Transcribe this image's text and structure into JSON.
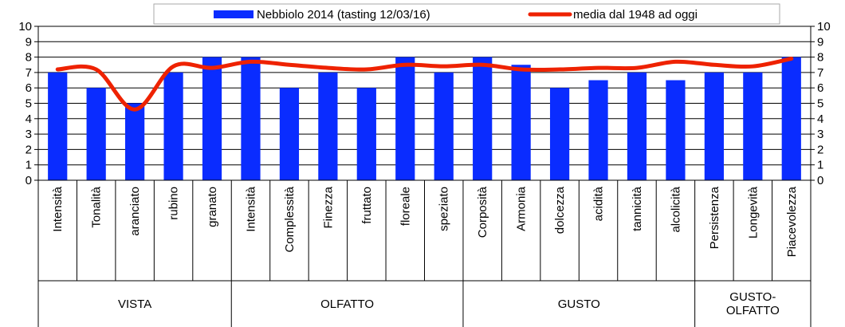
{
  "chart_data": {
    "type": "bar",
    "categories": [
      "Intensità",
      "Tonalità",
      "aranciato",
      "rubino",
      "granato",
      "Intensità",
      "Complessità",
      "Finezza",
      "fruttato",
      "floreale",
      "speziato",
      "Corposità",
      "Armonia",
      "dolcezza",
      "acidità",
      "tannicità",
      "alcolicità",
      "Persistenza",
      "Longevità",
      "Piacevolezza"
    ],
    "groups": [
      {
        "label": "VISTA",
        "count": 5
      },
      {
        "label": "OLFATTO",
        "count": 6
      },
      {
        "label": "GUSTO",
        "count": 6
      },
      {
        "label": "GUSTO-OLFATTO",
        "count": 3
      }
    ],
    "series": [
      {
        "name": "Nebbiolo 2014 (tasting 12/03/16)",
        "type": "bar",
        "color": "#0a2cff",
        "values": [
          7,
          6,
          5,
          7,
          8,
          8,
          6,
          7,
          6,
          8,
          7,
          8,
          7.5,
          6,
          6.5,
          7,
          6.5,
          7,
          7,
          8
        ]
      },
      {
        "name": "media dal 1948 ad oggi",
        "type": "line",
        "axis": "y2",
        "color": "#ee2200",
        "values": [
          7.2,
          7.2,
          4.6,
          7.4,
          7.3,
          7.7,
          7.5,
          7.3,
          7.2,
          7.5,
          7.4,
          7.5,
          7.2,
          7.2,
          7.3,
          7.3,
          7.7,
          7.5,
          7.4,
          7.9
        ]
      }
    ],
    "ylim": [
      0,
      10
    ],
    "yticks": [
      0,
      1,
      2,
      3,
      4,
      5,
      6,
      7,
      8,
      9,
      10
    ],
    "y2lim": [
      0,
      10
    ],
    "y2ticks": [
      0,
      1,
      2,
      3,
      4,
      5,
      6,
      7,
      8,
      9,
      10
    ],
    "grid": true,
    "legend": "top"
  }
}
